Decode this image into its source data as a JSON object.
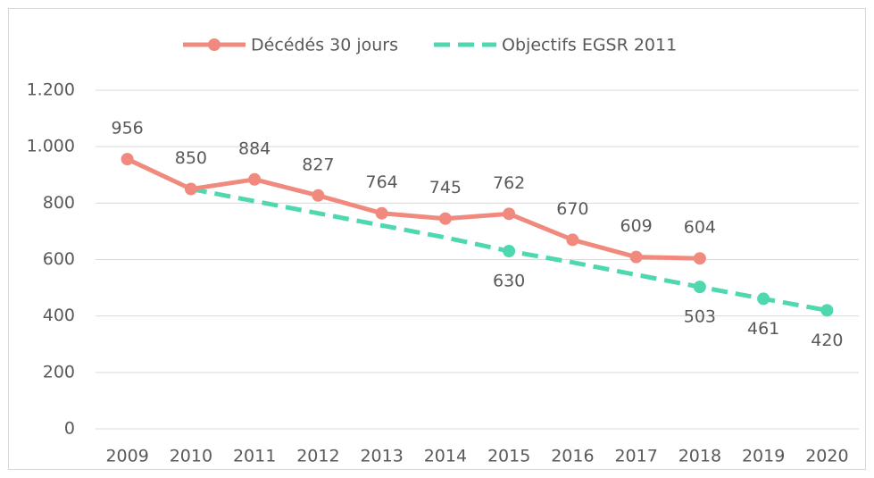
{
  "chart_data": {
    "type": "line",
    "categories": [
      "2009",
      "2010",
      "2011",
      "2012",
      "2013",
      "2014",
      "2015",
      "2016",
      "2017",
      "2018",
      "2019",
      "2020"
    ],
    "series": [
      {
        "name": "Décédés 30 jours",
        "color": "#f08a7e",
        "dashed": false,
        "values": [
          956,
          850,
          884,
          827,
          764,
          745,
          762,
          670,
          609,
          604,
          null,
          null
        ],
        "labeled": [
          0,
          1,
          2,
          3,
          4,
          5,
          6,
          7,
          8,
          9
        ],
        "label_position": "above"
      },
      {
        "name": "Objectifs EGSR 2011",
        "color": "#4fd8b0",
        "dashed": true,
        "values": [
          null,
          850,
          807,
          764,
          721,
          678,
          630,
          590,
          546,
          503,
          461,
          420
        ],
        "labeled": [
          6,
          9,
          10,
          11
        ],
        "label_position": "below"
      }
    ],
    "ylim": [
      0,
      1200
    ],
    "yticks": [
      0,
      200,
      400,
      600,
      800,
      {
        "value": 1000,
        "label": "1.000"
      },
      {
        "value": 1200,
        "label": "1.200"
      }
    ],
    "grid": true,
    "legend": "top"
  }
}
